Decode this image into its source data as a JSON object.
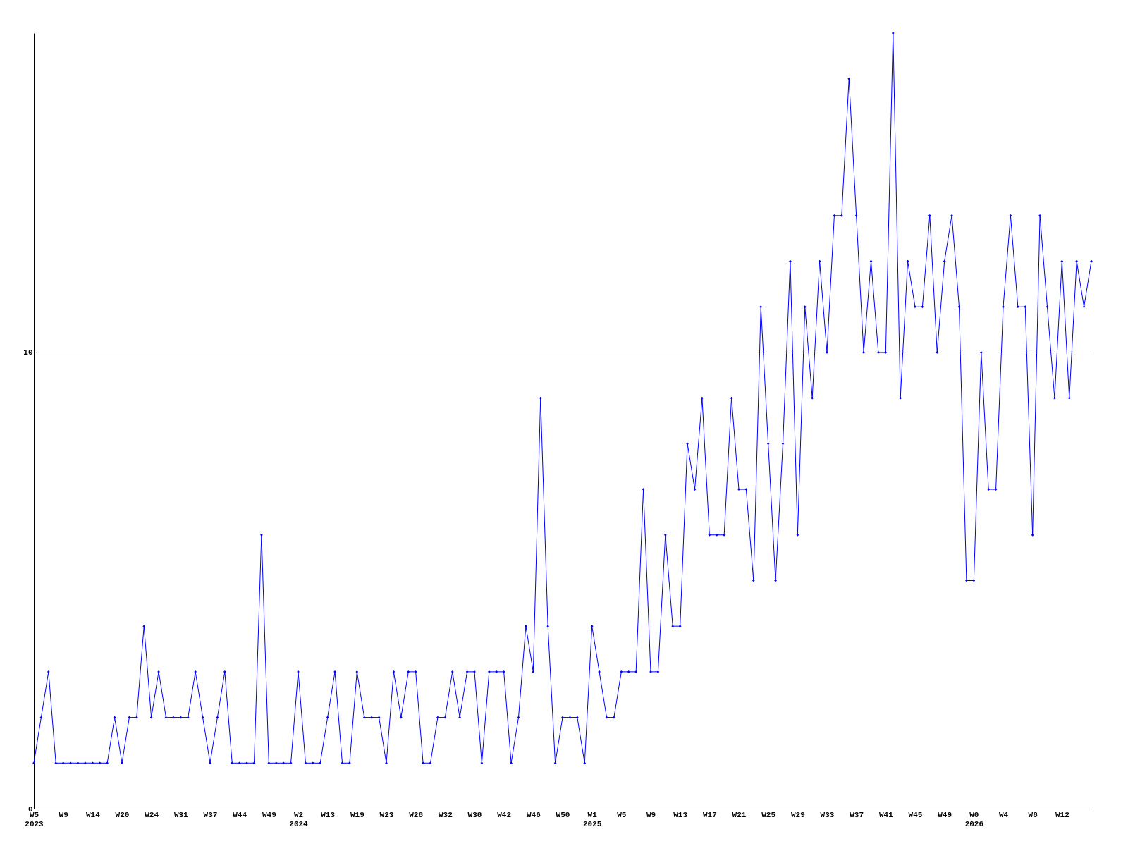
{
  "chart_data": {
    "type": "line",
    "categories": [
      "W5\n2023",
      null,
      null,
      null,
      "W9",
      null,
      null,
      null,
      "W14",
      null,
      null,
      null,
      "W20",
      null,
      null,
      null,
      "W24",
      null,
      null,
      null,
      "W31",
      null,
      null,
      null,
      "W37",
      null,
      null,
      null,
      "W44",
      null,
      null,
      null,
      "W49",
      null,
      null,
      null,
      "W2\n2024",
      null,
      null,
      null,
      "W13",
      null,
      null,
      null,
      "W19",
      null,
      null,
      null,
      "W23",
      null,
      null,
      null,
      "W28",
      null,
      null,
      null,
      "W32",
      null,
      null,
      null,
      "W38",
      null,
      null,
      null,
      "W42",
      null,
      null,
      null,
      "W46",
      null,
      null,
      null,
      "W50",
      null,
      null,
      null,
      "W1\n2025",
      null,
      null,
      null,
      "W5",
      null,
      null,
      null,
      "W9",
      null,
      null,
      null,
      "W13",
      null,
      null,
      null,
      "W17",
      null,
      null,
      null,
      "W21",
      null,
      null,
      null,
      "W25",
      null,
      null,
      null,
      "W29",
      null,
      null,
      null,
      "W33",
      null,
      null,
      null,
      "W37",
      null,
      null,
      null,
      "W41",
      null,
      null,
      null,
      "W45",
      null,
      null,
      null,
      "W49",
      null,
      null,
      null,
      "W0\n2026",
      null,
      null,
      null,
      "W4",
      null,
      null,
      null,
      "W8",
      null,
      null,
      null,
      "W12",
      null,
      null,
      null,
      null
    ],
    "series": [
      {
        "color": "#0000ff",
        "values": [
          1,
          2,
          3,
          1,
          1,
          1,
          1,
          1,
          1,
          1,
          1,
          2,
          1,
          2,
          2,
          4,
          2,
          3,
          2,
          2,
          2,
          2,
          3,
          2,
          1,
          2,
          3,
          1,
          1,
          1,
          1,
          6,
          1,
          1,
          1,
          1,
          3,
          1,
          1,
          1,
          2,
          3,
          1,
          1,
          3,
          2,
          2,
          2,
          1,
          3,
          2,
          3,
          3,
          1,
          1,
          2,
          2,
          3,
          2,
          3,
          3,
          1,
          3,
          3,
          3,
          1,
          2,
          4,
          3,
          9,
          4,
          1,
          2,
          2,
          2,
          1,
          4,
          3,
          2,
          2,
          3,
          3,
          3,
          7,
          3,
          3,
          6,
          4,
          4,
          8,
          7,
          9,
          6,
          6,
          6,
          9,
          7,
          7,
          5,
          11,
          8,
          5,
          8,
          12,
          6,
          11,
          9,
          12,
          10,
          13,
          13,
          16,
          13,
          10,
          12,
          10,
          10,
          17,
          9,
          12,
          11,
          11,
          13,
          10,
          12,
          13,
          11,
          5,
          5,
          10,
          7,
          7,
          11,
          13,
          11,
          11,
          6,
          13,
          11,
          9,
          12,
          9,
          12,
          11,
          12
        ]
      }
    ],
    "ylim": [
      0,
      17
    ],
    "yticks": [
      0,
      10
    ],
    "grid": "y",
    "marker": "diamond",
    "line_style": "solid"
  }
}
